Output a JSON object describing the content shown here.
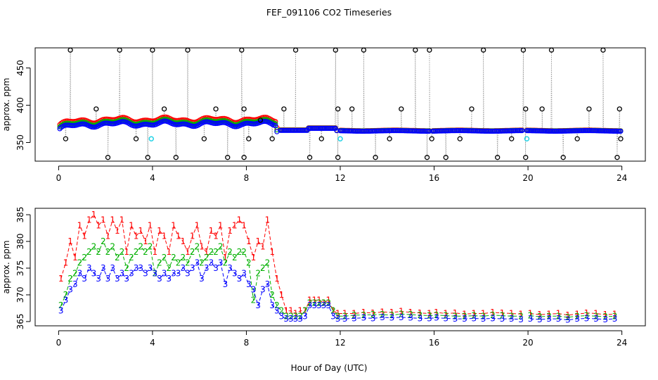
{
  "title": "FEF_091106  CO2 Timeseries",
  "chart_data": [
    {
      "type": "scatter",
      "name": "top",
      "ylabel": "approx. ppm",
      "xlabel": "",
      "xlim": [
        -1,
        25
      ],
      "ylim": [
        325,
        477
      ],
      "xticks": [
        0,
        4,
        8,
        12,
        16,
        20,
        24
      ],
      "yticks": [
        350,
        400,
        450
      ],
      "spike_high": 474,
      "spike_low": 330,
      "spike_times": [
        0.5,
        2.1,
        2.6,
        3.8,
        4.0,
        5.0,
        5.5,
        7.2,
        7.8,
        7.9,
        10.1,
        10.7,
        11.8,
        11.9,
        13.0,
        13.5,
        15.2,
        15.7,
        15.8,
        16.5,
        18.1,
        18.7,
        19.8,
        19.9,
        21.0,
        21.5,
        23.2,
        23.8
      ],
      "mid_markers": [
        {
          "x": 0.3,
          "y": 355
        },
        {
          "x": 1.6,
          "y": 395
        },
        {
          "x": 3.3,
          "y": 355
        },
        {
          "x": 4.5,
          "y": 395
        },
        {
          "x": 6.2,
          "y": 355
        },
        {
          "x": 6.7,
          "y": 395
        },
        {
          "x": 7.9,
          "y": 395
        },
        {
          "x": 8.1,
          "y": 355
        },
        {
          "x": 8.6,
          "y": 380
        },
        {
          "x": 9.1,
          "y": 355
        },
        {
          "x": 9.6,
          "y": 395
        },
        {
          "x": 11.2,
          "y": 355
        },
        {
          "x": 11.9,
          "y": 395
        },
        {
          "x": 12.5,
          "y": 395
        },
        {
          "x": 14.1,
          "y": 355
        },
        {
          "x": 14.6,
          "y": 395
        },
        {
          "x": 15.9,
          "y": 355
        },
        {
          "x": 17.1,
          "y": 355
        },
        {
          "x": 17.6,
          "y": 395
        },
        {
          "x": 19.3,
          "y": 355
        },
        {
          "x": 19.9,
          "y": 395
        },
        {
          "x": 20.6,
          "y": 395
        },
        {
          "x": 22.1,
          "y": 355
        },
        {
          "x": 22.6,
          "y": 395
        },
        {
          "x": 23.9,
          "y": 395
        },
        {
          "x": 23.95,
          "y": 355
        }
      ],
      "cyan_points": [
        {
          "x": 3.95,
          "y": 355
        },
        {
          "x": 12.0,
          "y": 355
        },
        {
          "x": 19.95,
          "y": 355
        }
      ],
      "segments": [
        {
          "x0": 0.05,
          "x1": 9.3,
          "n": 150
        },
        {
          "x0": 9.45,
          "x1": 11.85,
          "n": 45
        },
        {
          "x0": 12.0,
          "x1": 15.8,
          "n": 70
        },
        {
          "x0": 15.95,
          "x1": 19.75,
          "n": 70
        },
        {
          "x0": 19.95,
          "x1": 23.95,
          "n": 75
        }
      ],
      "series": [
        {
          "name": "1",
          "color": "#ff0000",
          "offset": 3.5
        },
        {
          "name": "2",
          "color": "#00b000",
          "offset": 0.5
        },
        {
          "name": "3",
          "color": "#0000ff",
          "offset": -2.0
        }
      ]
    },
    {
      "type": "line",
      "name": "bottom",
      "ylabel": "approx. ppm",
      "xlabel": "Hour of Day (UTC)",
      "xlim": [
        -1,
        25
      ],
      "ylim": [
        364.2,
        386.2
      ],
      "xticks": [
        0,
        4,
        8,
        12,
        16,
        20,
        24
      ],
      "yticks": [
        365,
        370,
        375,
        380,
        385
      ],
      "series": [
        {
          "name": "1",
          "color": "#ff0000",
          "x": [
            0.1,
            0.3,
            0.5,
            0.7,
            0.9,
            1.1,
            1.3,
            1.5,
            1.7,
            1.9,
            2.1,
            2.3,
            2.5,
            2.7,
            2.9,
            3.1,
            3.3,
            3.5,
            3.7,
            3.9,
            4.1,
            4.3,
            4.5,
            4.7,
            4.9,
            5.1,
            5.3,
            5.5,
            5.7,
            5.9,
            6.1,
            6.3,
            6.5,
            6.7,
            6.9,
            7.1,
            7.3,
            7.5,
            7.7,
            7.9,
            8.1,
            8.3,
            8.5,
            8.7,
            8.9,
            9.1,
            9.3,
            9.5,
            9.7,
            9.9,
            10.1,
            10.3,
            10.5,
            10.7,
            10.9,
            11.1,
            11.3,
            11.5,
            11.7,
            11.9,
            12.2,
            12.6,
            13.0,
            13.4,
            13.8,
            14.2,
            14.6,
            15.0,
            15.4,
            15.8,
            16.1,
            16.5,
            16.9,
            17.3,
            17.7,
            18.1,
            18.5,
            18.9,
            19.3,
            19.7,
            20.1,
            20.5,
            20.9,
            21.3,
            21.7,
            22.1,
            22.5,
            22.9,
            23.3,
            23.7
          ],
          "y": [
            373,
            376,
            380,
            377,
            383,
            381,
            384,
            385,
            383,
            384,
            381,
            384,
            382,
            384,
            378,
            383,
            381,
            382,
            380,
            383,
            378,
            382,
            381,
            378,
            383,
            381,
            380,
            378,
            381,
            383,
            379,
            378,
            382,
            381,
            383,
            377,
            382,
            383,
            384,
            383,
            380,
            377,
            380,
            379,
            384,
            378,
            373,
            370,
            367,
            367,
            366.5,
            367,
            367,
            369,
            369,
            369,
            368.5,
            369,
            367,
            366.5,
            366.5,
            366.5,
            366.7,
            366.6,
            366.8,
            366.7,
            366.9,
            366.7,
            366.6,
            366.5,
            366.7,
            366.5,
            366.6,
            366.4,
            366.5,
            366.5,
            366.7,
            366.6,
            366.5,
            366.4,
            366.5,
            366.3,
            366.4,
            366.5,
            366.2,
            366.4,
            366.6,
            366.5,
            366.3,
            366.4
          ]
        },
        {
          "name": "2",
          "color": "#00b000",
          "x": [
            0.1,
            0.3,
            0.5,
            0.7,
            0.9,
            1.1,
            1.3,
            1.5,
            1.7,
            1.9,
            2.1,
            2.3,
            2.5,
            2.7,
            2.9,
            3.1,
            3.3,
            3.5,
            3.7,
            3.9,
            4.1,
            4.3,
            4.5,
            4.7,
            4.9,
            5.1,
            5.3,
            5.5,
            5.7,
            5.9,
            6.1,
            6.3,
            6.5,
            6.7,
            6.9,
            7.1,
            7.3,
            7.5,
            7.7,
            7.9,
            8.1,
            8.3,
            8.5,
            8.7,
            8.9,
            9.1,
            9.3,
            9.5,
            9.7,
            9.9,
            10.1,
            10.3,
            10.5,
            10.7,
            10.9,
            11.1,
            11.3,
            11.5,
            11.7,
            11.9,
            12.2,
            12.6,
            13.0,
            13.4,
            13.8,
            14.2,
            14.6,
            15.0,
            15.4,
            15.8,
            16.1,
            16.5,
            16.9,
            17.3,
            17.7,
            18.1,
            18.5,
            18.9,
            19.3,
            19.7,
            20.1,
            20.5,
            20.9,
            21.3,
            21.7,
            22.1,
            22.5,
            22.9,
            23.3,
            23.7
          ],
          "y": [
            368,
            370,
            373,
            374,
            376,
            377,
            378,
            379,
            378,
            380,
            378,
            379,
            377,
            378,
            375,
            377,
            378,
            379,
            378,
            379,
            374,
            376,
            377,
            375,
            377,
            376,
            377,
            376,
            378,
            379,
            376,
            377,
            378,
            378,
            379,
            376,
            378,
            377,
            378,
            378,
            376,
            369,
            374,
            375,
            376,
            370,
            368,
            367,
            366,
            366,
            366,
            366,
            367,
            368.5,
            368.5,
            368.5,
            368.5,
            368.5,
            367,
            366,
            366,
            366.2,
            366.2,
            366.3,
            366.3,
            366.2,
            366.4,
            366.3,
            366.2,
            366.1,
            366.2,
            366.1,
            366.0,
            366.0,
            366.1,
            366.0,
            366.2,
            366.1,
            366.0,
            366.0,
            366.1,
            365.9,
            366.0,
            366.0,
            365.8,
            366.0,
            366.1,
            366.0,
            365.9,
            366.0
          ]
        },
        {
          "name": "3",
          "color": "#0000ff",
          "x": [
            0.1,
            0.3,
            0.5,
            0.7,
            0.9,
            1.1,
            1.3,
            1.5,
            1.7,
            1.9,
            2.1,
            2.3,
            2.5,
            2.7,
            2.9,
            3.1,
            3.3,
            3.5,
            3.7,
            3.9,
            4.1,
            4.3,
            4.5,
            4.7,
            4.9,
            5.1,
            5.3,
            5.5,
            5.7,
            5.9,
            6.1,
            6.3,
            6.5,
            6.7,
            6.9,
            7.1,
            7.3,
            7.5,
            7.7,
            7.9,
            8.1,
            8.3,
            8.5,
            8.7,
            8.9,
            9.1,
            9.3,
            9.5,
            9.7,
            9.9,
            10.1,
            10.3,
            10.5,
            10.7,
            10.9,
            11.1,
            11.3,
            11.5,
            11.7,
            11.9,
            12.2,
            12.6,
            13.0,
            13.4,
            13.8,
            14.2,
            14.6,
            15.0,
            15.4,
            15.8,
            16.1,
            16.5,
            16.9,
            17.3,
            17.7,
            18.1,
            18.5,
            18.9,
            19.3,
            19.7,
            20.1,
            20.5,
            20.9,
            21.3,
            21.7,
            22.1,
            22.5,
            22.9,
            23.3,
            23.7
          ],
          "y": [
            367,
            369,
            371,
            372,
            374,
            373,
            375,
            374,
            373,
            375,
            373,
            375,
            373,
            374,
            373,
            374,
            375,
            375,
            374,
            375,
            374,
            373,
            374,
            373,
            374,
            374,
            375,
            374,
            375,
            376,
            373,
            375,
            376,
            375,
            376,
            372,
            375,
            374,
            373,
            374,
            372,
            371,
            368,
            371,
            372,
            368,
            367,
            366,
            365.5,
            365.5,
            365.5,
            365.5,
            366,
            368,
            368,
            368,
            368,
            368,
            366,
            365.5,
            365.5,
            365.6,
            365.7,
            365.6,
            365.8,
            365.7,
            365.8,
            365.7,
            365.6,
            365.6,
            365.7,
            365.6,
            365.5,
            365.5,
            365.6,
            365.5,
            365.6,
            365.5,
            365.5,
            365.4,
            365.5,
            365.4,
            365.5,
            365.5,
            365.3,
            365.5,
            365.6,
            365.5,
            365.4,
            365.5
          ]
        }
      ]
    }
  ]
}
